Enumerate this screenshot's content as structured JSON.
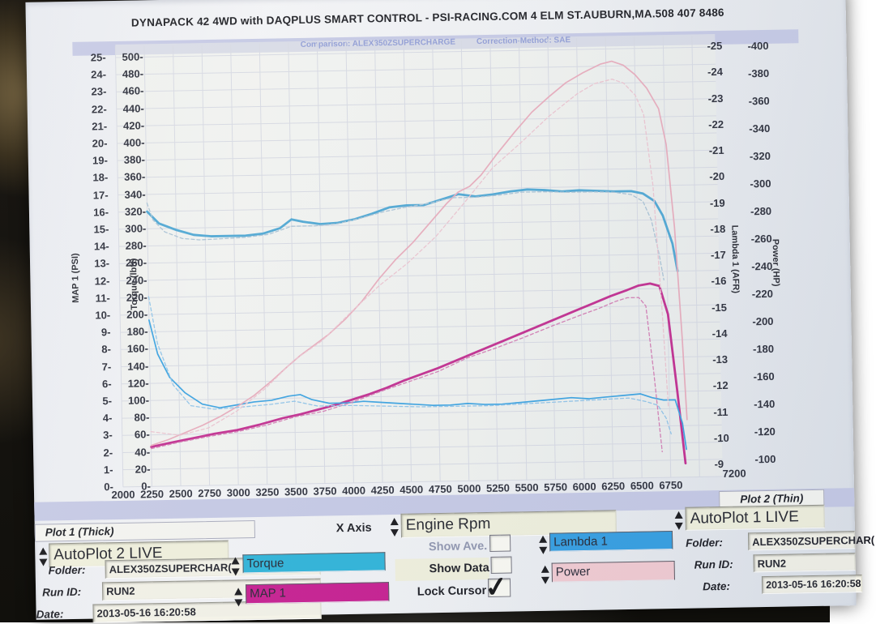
{
  "colors": {
    "accent_lavender": "#c5c9e6",
    "field_cream": "#f1f1dd",
    "torque_swatch": "#26b2d9",
    "map_swatch": "#c6158d",
    "lambda_swatch": "#2d9ce2",
    "power_swatch": "#f3cad1",
    "comparison_text_blue": "#3d52c5",
    "curve_torque": "#4aa6d4",
    "curve_map": "#c2288e",
    "curve_lambda": "#35a1e2",
    "curve_power": "#e9abbc"
  },
  "header": {
    "title": "DYNAPACK 42 4WD with DAQPLUS SMART CONTROL - PSI-RACING.COM 4 ELM ST.AUBURN,MA.508 407 8486",
    "comparison": "Comparison: ALEX350ZSUPERCHARGE",
    "correction": "Correction-Method: SAE"
  },
  "chart_data": {
    "type": "line",
    "grid": true,
    "x_axis": {
      "label": "Engine Rpm",
      "min": 2000,
      "max": 7200,
      "tick_step": 250,
      "last_tick_label": 7200
    },
    "y_axes": [
      {
        "id": "map",
        "title": "MAP 1 (PSI)",
        "side": "left",
        "min": 0,
        "max": 25,
        "step": 1
      },
      {
        "id": "torque",
        "title": "Torque (lbft)",
        "side": "left",
        "min": 0,
        "max": 500,
        "step": 20
      },
      {
        "id": "lambda",
        "title": "Lambda 1 (AFR)",
        "side": "right",
        "min": 9,
        "max": 25,
        "step": 1
      },
      {
        "id": "power",
        "title": "Power (HP)",
        "side": "right",
        "min": 100,
        "max": 400,
        "step": 20
      }
    ],
    "series": [
      {
        "name": "Torque",
        "axis": "torque",
        "color": "#4aa6d4",
        "width": 2.8,
        "dashed": false,
        "points": [
          [
            2250,
            320
          ],
          [
            2350,
            306
          ],
          [
            2500,
            298
          ],
          [
            2650,
            292
          ],
          [
            2800,
            290
          ],
          [
            2950,
            290
          ],
          [
            3100,
            290
          ],
          [
            3250,
            292
          ],
          [
            3400,
            298
          ],
          [
            3500,
            308
          ],
          [
            3600,
            305
          ],
          [
            3750,
            302
          ],
          [
            3900,
            303
          ],
          [
            4050,
            307
          ],
          [
            4200,
            313
          ],
          [
            4350,
            320
          ],
          [
            4500,
            322
          ],
          [
            4650,
            322
          ],
          [
            4800,
            328
          ],
          [
            4950,
            334
          ],
          [
            5100,
            331
          ],
          [
            5250,
            333
          ],
          [
            5400,
            336
          ],
          [
            5550,
            338
          ],
          [
            5700,
            337
          ],
          [
            5850,
            335
          ],
          [
            6000,
            336
          ],
          [
            6150,
            335
          ],
          [
            6300,
            334
          ],
          [
            6450,
            334
          ],
          [
            6550,
            331
          ],
          [
            6650,
            322
          ],
          [
            6720,
            305
          ],
          [
            6800,
            272
          ],
          [
            6840,
            240
          ]
        ]
      },
      {
        "name": "MAP 1",
        "axis": "map",
        "color": "#c2288e",
        "width": 2.8,
        "dashed": false,
        "points": [
          [
            2250,
            2.3
          ],
          [
            2400,
            2.5
          ],
          [
            2600,
            2.75
          ],
          [
            2800,
            3.0
          ],
          [
            3000,
            3.2
          ],
          [
            3200,
            3.5
          ],
          [
            3400,
            3.85
          ],
          [
            3550,
            4.05
          ],
          [
            3700,
            4.3
          ],
          [
            3850,
            4.55
          ],
          [
            4000,
            4.85
          ],
          [
            4150,
            5.15
          ],
          [
            4300,
            5.5
          ],
          [
            4450,
            5.9
          ],
          [
            4600,
            6.25
          ],
          [
            4750,
            6.6
          ],
          [
            4900,
            7.0
          ],
          [
            5050,
            7.4
          ],
          [
            5200,
            7.8
          ],
          [
            5350,
            8.2
          ],
          [
            5500,
            8.6
          ],
          [
            5650,
            9.0
          ],
          [
            5800,
            9.4
          ],
          [
            5950,
            9.8
          ],
          [
            6100,
            10.2
          ],
          [
            6250,
            10.6
          ],
          [
            6400,
            10.95
          ],
          [
            6500,
            11.2
          ],
          [
            6600,
            11.3
          ],
          [
            6680,
            11.15
          ],
          [
            6750,
            9.5
          ],
          [
            6820,
            5.0
          ],
          [
            6880,
            0.8
          ]
        ]
      },
      {
        "name": "Lambda 1",
        "axis": "lambda",
        "color": "#35a1e2",
        "width": 1.7,
        "dashed": false,
        "points": [
          [
            2250,
            14.9
          ],
          [
            2320,
            13.6
          ],
          [
            2420,
            12.7
          ],
          [
            2550,
            12.1
          ],
          [
            2700,
            11.65
          ],
          [
            2850,
            11.5
          ],
          [
            3000,
            11.6
          ],
          [
            3150,
            11.7
          ],
          [
            3300,
            11.75
          ],
          [
            3450,
            11.9
          ],
          [
            3550,
            11.95
          ],
          [
            3650,
            11.75
          ],
          [
            3800,
            11.6
          ],
          [
            3950,
            11.6
          ],
          [
            4100,
            11.65
          ],
          [
            4250,
            11.6
          ],
          [
            4400,
            11.55
          ],
          [
            4550,
            11.5
          ],
          [
            4700,
            11.45
          ],
          [
            4850,
            11.45
          ],
          [
            5000,
            11.5
          ],
          [
            5150,
            11.45
          ],
          [
            5300,
            11.45
          ],
          [
            5450,
            11.5
          ],
          [
            5600,
            11.55
          ],
          [
            5750,
            11.6
          ],
          [
            5900,
            11.65
          ],
          [
            6050,
            11.6
          ],
          [
            6200,
            11.65
          ],
          [
            6350,
            11.7
          ],
          [
            6500,
            11.75
          ],
          [
            6600,
            11.6
          ],
          [
            6700,
            11.5
          ],
          [
            6800,
            11.5
          ],
          [
            6860,
            10.6
          ],
          [
            6890,
            9.6
          ]
        ]
      },
      {
        "name": "Power",
        "axis": "power",
        "color": "#e9abbc",
        "width": 1.7,
        "dashed": false,
        "points": [
          [
            2250,
            118
          ],
          [
            2400,
            122
          ],
          [
            2550,
            127
          ],
          [
            2700,
            132
          ],
          [
            2850,
            138
          ],
          [
            3000,
            145
          ],
          [
            3150,
            153
          ],
          [
            3300,
            163
          ],
          [
            3450,
            174
          ],
          [
            3550,
            181
          ],
          [
            3650,
            187
          ],
          [
            3800,
            196
          ],
          [
            3950,
            207
          ],
          [
            4100,
            220
          ],
          [
            4250,
            236
          ],
          [
            4400,
            250
          ],
          [
            4550,
            262
          ],
          [
            4700,
            276
          ],
          [
            4850,
            290
          ],
          [
            4950,
            298
          ],
          [
            5050,
            302
          ],
          [
            5150,
            310
          ],
          [
            5300,
            326
          ],
          [
            5450,
            341
          ],
          [
            5600,
            355
          ],
          [
            5750,
            366
          ],
          [
            5900,
            376
          ],
          [
            6050,
            383
          ],
          [
            6200,
            389
          ],
          [
            6300,
            391
          ],
          [
            6400,
            388
          ],
          [
            6500,
            381
          ],
          [
            6600,
            371
          ],
          [
            6700,
            356
          ],
          [
            6760,
            330
          ],
          [
            6820,
            270
          ],
          [
            6870,
            190
          ],
          [
            6900,
            130
          ]
        ]
      },
      {
        "name": "Torque comparison",
        "axis": "torque",
        "color": "#a9c3d6",
        "width": 1.3,
        "dashed": true,
        "points": [
          [
            2250,
            330
          ],
          [
            2300,
            310
          ],
          [
            2400,
            296
          ],
          [
            2550,
            288
          ],
          [
            2700,
            286
          ],
          [
            2900,
            287
          ],
          [
            3100,
            288
          ],
          [
            3300,
            291
          ],
          [
            3500,
            300
          ],
          [
            3700,
            300
          ],
          [
            3900,
            302
          ],
          [
            4100,
            308
          ],
          [
            4300,
            315
          ],
          [
            4500,
            320
          ],
          [
            4700,
            324
          ],
          [
            4900,
            330
          ],
          [
            5100,
            330
          ],
          [
            5300,
            332
          ],
          [
            5500,
            335
          ],
          [
            5700,
            335
          ],
          [
            5900,
            334
          ],
          [
            6100,
            334
          ],
          [
            6300,
            333
          ],
          [
            6450,
            330
          ],
          [
            6550,
            322
          ],
          [
            6620,
            300
          ],
          [
            6680,
            262
          ],
          [
            6720,
            230
          ]
        ]
      },
      {
        "name": "MAP 1 comparison",
        "axis": "map",
        "color": "#d47cb4",
        "width": 1.3,
        "dashed": true,
        "points": [
          [
            2250,
            2.2
          ],
          [
            2500,
            2.55
          ],
          [
            2750,
            2.85
          ],
          [
            3000,
            3.1
          ],
          [
            3250,
            3.45
          ],
          [
            3500,
            3.9
          ],
          [
            3750,
            4.2
          ],
          [
            4000,
            4.7
          ],
          [
            4250,
            5.3
          ],
          [
            4500,
            5.85
          ],
          [
            4750,
            6.4
          ],
          [
            5000,
            7.15
          ],
          [
            5250,
            7.7
          ],
          [
            5500,
            8.3
          ],
          [
            5750,
            8.95
          ],
          [
            6000,
            9.55
          ],
          [
            6150,
            9.9
          ],
          [
            6300,
            10.3
          ],
          [
            6400,
            10.5
          ],
          [
            6500,
            10.5
          ],
          [
            6560,
            10.0
          ],
          [
            6620,
            6.0
          ],
          [
            6680,
            1.5
          ]
        ]
      },
      {
        "name": "Lambda 1 comparison",
        "axis": "lambda",
        "color": "#8ec4ea",
        "width": 1.3,
        "dashed": true,
        "points": [
          [
            2250,
            15.8
          ],
          [
            2320,
            14.0
          ],
          [
            2450,
            12.4
          ],
          [
            2600,
            11.6
          ],
          [
            2800,
            11.45
          ],
          [
            3000,
            11.5
          ],
          [
            3300,
            11.6
          ],
          [
            3500,
            11.7
          ],
          [
            3700,
            11.5
          ],
          [
            4000,
            11.5
          ],
          [
            4300,
            11.45
          ],
          [
            4600,
            11.4
          ],
          [
            4900,
            11.4
          ],
          [
            5200,
            11.4
          ],
          [
            5500,
            11.45
          ],
          [
            5800,
            11.5
          ],
          [
            6100,
            11.55
          ],
          [
            6400,
            11.6
          ],
          [
            6550,
            11.45
          ],
          [
            6650,
            11.3
          ],
          [
            6720,
            10.8
          ],
          [
            6760,
            10.2
          ]
        ]
      },
      {
        "name": "Power comparison",
        "axis": "power",
        "color": "#edc5d1",
        "width": 1.3,
        "dashed": true,
        "points": [
          [
            2250,
            128
          ],
          [
            2500,
            125
          ],
          [
            2750,
            130
          ],
          [
            3000,
            142
          ],
          [
            3250,
            158
          ],
          [
            3500,
            178
          ],
          [
            3750,
            192
          ],
          [
            4000,
            212
          ],
          [
            4250,
            231
          ],
          [
            4500,
            247
          ],
          [
            4750,
            266
          ],
          [
            5000,
            290
          ],
          [
            5250,
            315
          ],
          [
            5500,
            333
          ],
          [
            5750,
            352
          ],
          [
            6000,
            368
          ],
          [
            6150,
            375
          ],
          [
            6300,
            378
          ],
          [
            6400,
            375
          ],
          [
            6500,
            366
          ],
          [
            6570,
            352
          ],
          [
            6640,
            300
          ],
          [
            6700,
            210
          ],
          [
            6740,
            140
          ]
        ]
      }
    ]
  },
  "controls": {
    "x_axis": {
      "label": "X Axis",
      "value": "Engine Rpm"
    },
    "checkboxes": [
      {
        "label": "Show Ave.",
        "checked": false
      },
      {
        "label": "Show Data",
        "checked": false
      },
      {
        "label": "Lock Cursor",
        "checked": true
      }
    ],
    "plot1": {
      "header": "Plot 1 (Thick)",
      "autoplot": "AutoPlot 2 LIVE",
      "folder_label": "Folder:",
      "folder": "ALEX350ZSUPERCHAR(",
      "run_label": "Run ID:",
      "run_id": "RUN2",
      "date_label": "Date:",
      "date": "2013-05-16 16:20:58",
      "channels": [
        {
          "label": "Torque",
          "color": "#26b2d9"
        },
        {
          "label": "MAP 1",
          "color": "#c6158d"
        }
      ]
    },
    "plot2": {
      "header": "Plot 2 (Thin)",
      "autoplot": "AutoPlot 1 LIVE",
      "folder_label": "Folder:",
      "folder": "ALEX350ZSUPERCHAR(",
      "run_label": "Run ID:",
      "run_id": "RUN2",
      "date_label": "Date:",
      "date": "2013-05-16 16:20:58",
      "channels": [
        {
          "label": "Lambda 1",
          "color": "#2d9ce2"
        },
        {
          "label": "Power",
          "color": "#f3cad1"
        }
      ]
    }
  }
}
